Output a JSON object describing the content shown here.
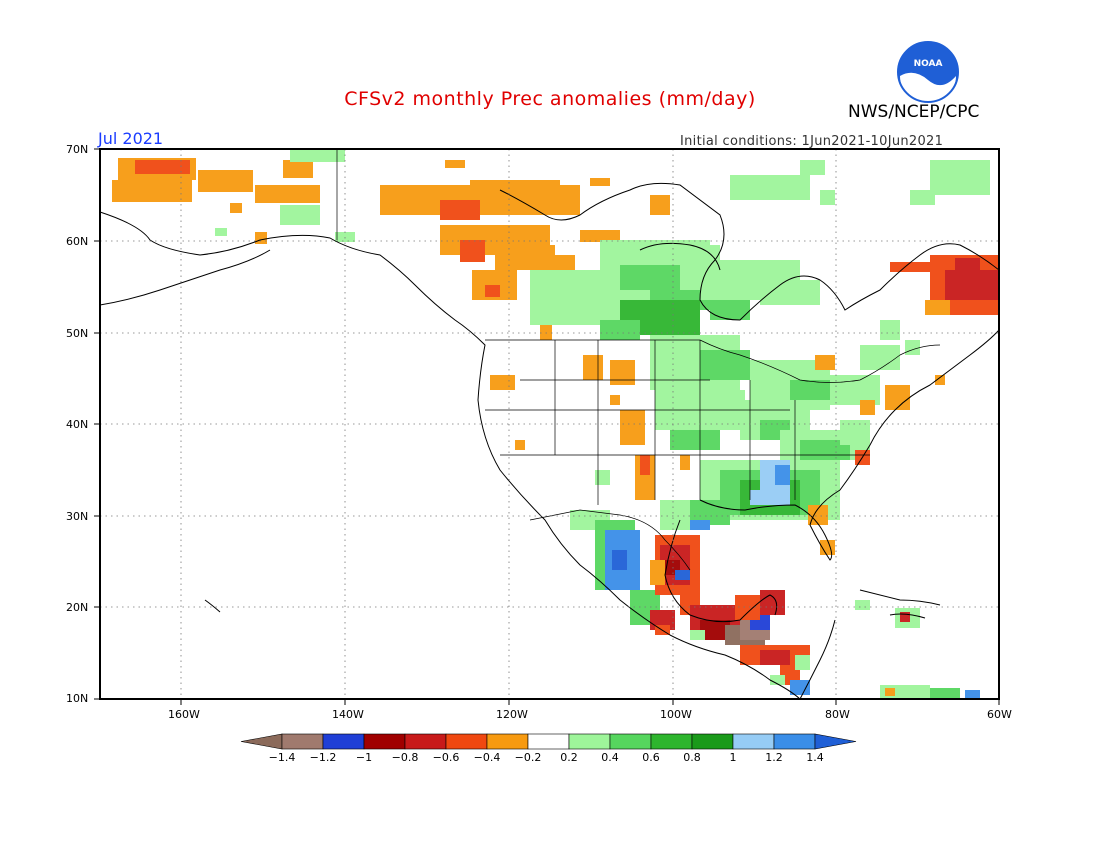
{
  "header": {
    "title": "CFSv2 monthly Prec anomalies (mm/day)",
    "organization": "NWS/NCEP/CPC",
    "logo_text": "NOAA",
    "month": "Jul 2021",
    "initial_conditions": "Initial conditions: 1Jun2021-10Jun2021"
  },
  "axes": {
    "lat_labels": [
      "70N",
      "60N",
      "50N",
      "40N",
      "30N",
      "20N",
      "10N"
    ],
    "lon_labels": [
      "160W",
      "140W",
      "120W",
      "100W",
      "80W",
      "60W"
    ]
  },
  "colorbar": {
    "ticks": [
      "-1.4",
      "-1.2",
      "-1",
      "-0.8",
      "-0.6",
      "-0.4",
      "-0.2",
      "0.2",
      "0.4",
      "0.6",
      "0.8",
      "1",
      "1.2",
      "1.4"
    ],
    "colors": [
      "#8b6a5a",
      "#a07a6e",
      "#1f3fd6",
      "#a00000",
      "#c81a1a",
      "#f04810",
      "#f79a10",
      "#ffffff",
      "#9ef59a",
      "#56d65e",
      "#2eb52e",
      "#1a9a1a",
      "#96ccf5",
      "#3a8ee8",
      "#1f5fd6"
    ]
  },
  "colors": {
    "title": "#e00000",
    "month": "#1a3cff",
    "noaa_blue": "#1f5fd6"
  }
}
